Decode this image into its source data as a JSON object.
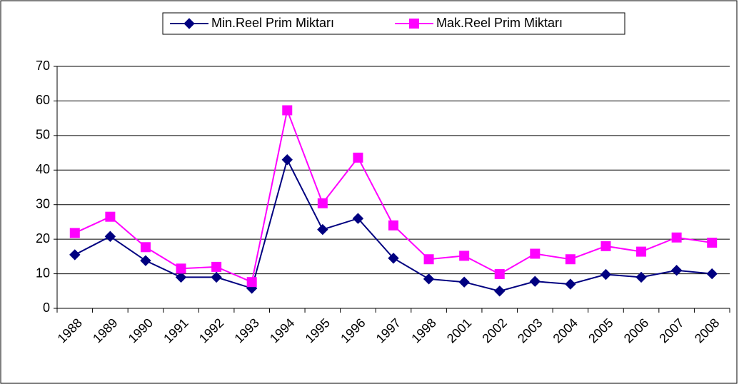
{
  "chart_data": {
    "type": "line",
    "categories": [
      "1988",
      "1989",
      "1990",
      "1991",
      "1992",
      "1993",
      "1994",
      "1995",
      "1996",
      "1997",
      "1998",
      "2001",
      "2002",
      "2003",
      "2004",
      "2005",
      "2006",
      "2007",
      "2008"
    ],
    "series": [
      {
        "name": "Min.Reel Prim Miktarı",
        "color": "#000080",
        "marker": "diamond",
        "values": [
          15.5,
          20.8,
          13.8,
          9,
          9,
          5.8,
          43,
          22.8,
          26,
          14.5,
          8.5,
          7.6,
          5,
          7.8,
          7,
          9.8,
          9,
          11,
          10
        ]
      },
      {
        "name": "Mak.Reel Prim Miktarı",
        "color": "#ff00ff",
        "marker": "square",
        "values": [
          21.8,
          26.5,
          17.7,
          11.5,
          12,
          7.6,
          57.3,
          30.4,
          43.6,
          24,
          14.2,
          15.2,
          9.9,
          15.8,
          14.2,
          18,
          16.4,
          20.5,
          19
        ]
      }
    ],
    "ylim": [
      0,
      70
    ],
    "yticks": [
      0,
      10,
      20,
      30,
      40,
      50,
      60,
      70
    ],
    "grid": true,
    "legend": "top"
  }
}
